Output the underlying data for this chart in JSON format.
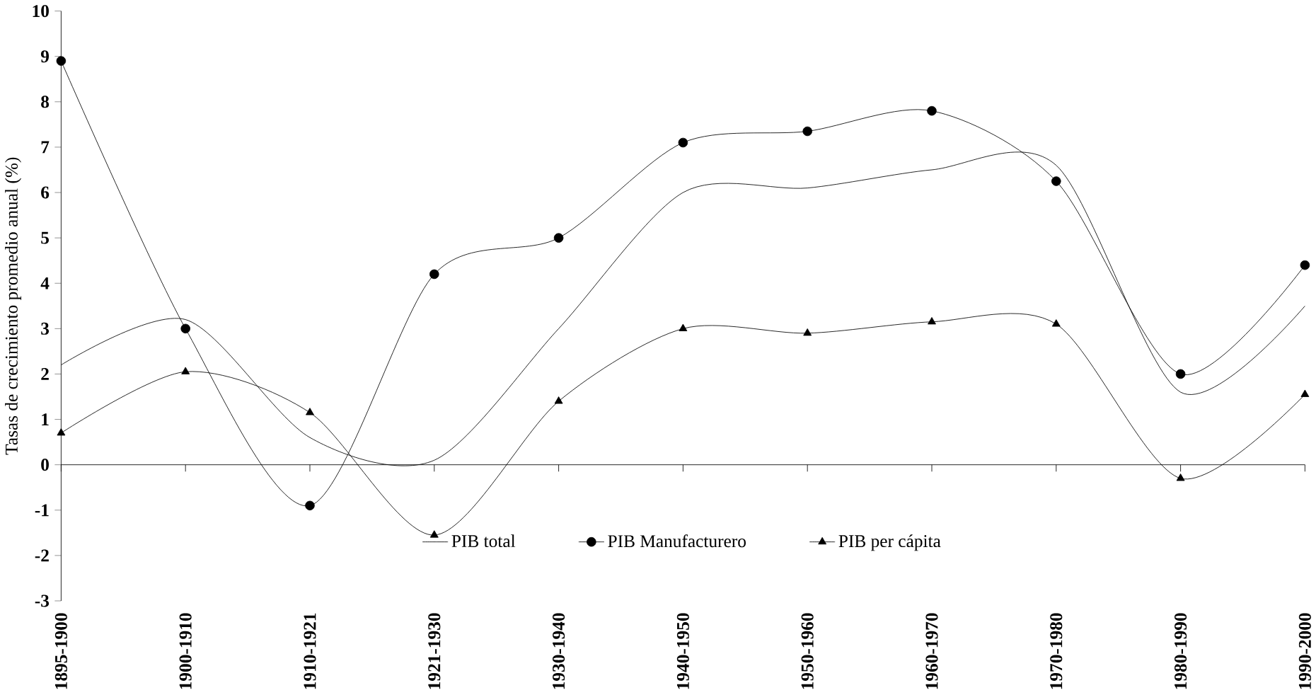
{
  "chart_data": {
    "type": "line",
    "ylabel": "Tasas de crecimiento promedio anual (%)",
    "categories": [
      "1895-1900",
      "1900-1910",
      "1910-1921",
      "1921-1930",
      "1930-1940",
      "1940-1950",
      "1950-1960",
      "1960-1970",
      "1970-1980",
      "1980-1990",
      "1990-2000"
    ],
    "series": [
      {
        "name": "PIB total",
        "color": "#000000",
        "marker": "none",
        "values": [
          2.2,
          3.2,
          0.6,
          0.1,
          3.0,
          6.0,
          6.1,
          6.5,
          6.6,
          1.6,
          3.5
        ]
      },
      {
        "name": "PIB Manufacturero",
        "color": "#000000",
        "marker": "circle",
        "values": [
          8.9,
          3.0,
          -0.9,
          4.2,
          5.0,
          7.1,
          7.35,
          7.8,
          6.25,
          2.0,
          4.4
        ]
      },
      {
        "name": "PIB per cápita",
        "color": "#000000",
        "marker": "triangle",
        "values": [
          0.7,
          2.05,
          1.15,
          -1.55,
          1.4,
          3.0,
          2.9,
          3.15,
          3.1,
          -0.3,
          1.55
        ]
      }
    ],
    "ylim": [
      -3,
      10
    ],
    "yticks": [
      -3,
      -2,
      -1,
      0,
      1,
      2,
      3,
      4,
      5,
      6,
      7,
      8,
      9,
      10
    ],
    "ref_lines": [
      {
        "axis": "y",
        "value": 0,
        "color": "#000000",
        "line_style": "solid"
      }
    ],
    "grid": false,
    "legend": "bottom",
    "line_style": "solid"
  }
}
